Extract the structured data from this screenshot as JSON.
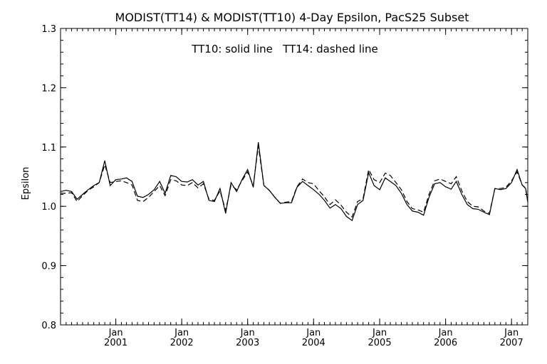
{
  "chart_data": {
    "type": "line",
    "title": "MODIST(TT14) & MODIST(TT10) 4-Day Epsilon, PacS25 Subset",
    "annotation": "TT10: solid line   TT14: dashed line",
    "ylabel": "Epsilon",
    "xlabel": "",
    "ylim": [
      0.8,
      1.3
    ],
    "yticks": [
      "0.8",
      "0.9",
      "1.0",
      "1.1",
      "1.2",
      "1.3"
    ],
    "xlim": [
      "2000-03-01",
      "2007-04-01"
    ],
    "xticks": [
      {
        "date": "2001-01-01",
        "month": "Jan",
        "year": "2001"
      },
      {
        "date": "2002-01-01",
        "month": "Jan",
        "year": "2002"
      },
      {
        "date": "2003-01-01",
        "month": "Jan",
        "year": "2003"
      },
      {
        "date": "2004-01-01",
        "month": "Jan",
        "year": "2004"
      },
      {
        "date": "2005-01-01",
        "month": "Jan",
        "year": "2005"
      },
      {
        "date": "2006-01-01",
        "month": "Jan",
        "year": "2006"
      },
      {
        "date": "2007-01-01",
        "month": "Jan",
        "year": "2007"
      }
    ],
    "grid": false,
    "series": [
      {
        "name": "TT10",
        "style": "solid",
        "points": [
          [
            "2000-03-01",
            1.025
          ],
          [
            "2000-04-01",
            1.027
          ],
          [
            "2000-05-01",
            1.025
          ],
          [
            "2000-06-01",
            1.012
          ],
          [
            "2000-07-01",
            1.02
          ],
          [
            "2000-08-01",
            1.028
          ],
          [
            "2000-09-01",
            1.035
          ],
          [
            "2000-10-01",
            1.04
          ],
          [
            "2000-11-01",
            1.077
          ],
          [
            "2000-12-01",
            1.035
          ],
          [
            "2001-01-01",
            1.045
          ],
          [
            "2001-02-01",
            1.046
          ],
          [
            "2001-03-01",
            1.048
          ],
          [
            "2001-04-01",
            1.042
          ],
          [
            "2001-05-01",
            1.017
          ],
          [
            "2001-06-01",
            1.015
          ],
          [
            "2001-07-01",
            1.02
          ],
          [
            "2001-08-01",
            1.028
          ],
          [
            "2001-09-01",
            1.042
          ],
          [
            "2001-10-01",
            1.022
          ],
          [
            "2001-11-01",
            1.052
          ],
          [
            "2001-12-01",
            1.05
          ],
          [
            "2002-01-01",
            1.042
          ],
          [
            "2002-02-01",
            1.041
          ],
          [
            "2002-03-01",
            1.045
          ],
          [
            "2002-04-01",
            1.036
          ],
          [
            "2002-05-01",
            1.042
          ],
          [
            "2002-06-01",
            1.01
          ],
          [
            "2002-07-01",
            1.008
          ],
          [
            "2002-08-01",
            1.03
          ],
          [
            "2002-09-01",
            0.988
          ],
          [
            "2002-10-01",
            1.04
          ],
          [
            "2002-11-01",
            1.025
          ],
          [
            "2002-12-01",
            1.045
          ],
          [
            "2003-01-01",
            1.062
          ],
          [
            "2003-02-01",
            1.032
          ],
          [
            "2003-03-01",
            1.108
          ],
          [
            "2003-04-01",
            1.035
          ],
          [
            "2003-05-01",
            1.027
          ],
          [
            "2003-06-01",
            1.015
          ],
          [
            "2003-07-01",
            1.005
          ],
          [
            "2003-08-01",
            1.006
          ],
          [
            "2003-09-01",
            1.006
          ],
          [
            "2003-10-01",
            1.032
          ],
          [
            "2003-11-01",
            1.042
          ],
          [
            "2003-12-01",
            1.035
          ],
          [
            "2004-01-01",
            1.028
          ],
          [
            "2004-02-01",
            1.02
          ],
          [
            "2004-03-01",
            1.01
          ],
          [
            "2004-04-01",
            0.997
          ],
          [
            "2004-05-01",
            1.003
          ],
          [
            "2004-06-01",
            0.996
          ],
          [
            "2004-07-01",
            0.983
          ],
          [
            "2004-08-01",
            0.976
          ],
          [
            "2004-09-01",
            1.003
          ],
          [
            "2004-10-01",
            1.01
          ],
          [
            "2004-11-01",
            1.057
          ],
          [
            "2004-12-01",
            1.035
          ],
          [
            "2005-01-01",
            1.028
          ],
          [
            "2005-02-01",
            1.048
          ],
          [
            "2005-03-01",
            1.042
          ],
          [
            "2005-04-01",
            1.035
          ],
          [
            "2005-05-01",
            1.022
          ],
          [
            "2005-06-01",
            1.003
          ],
          [
            "2005-07-01",
            0.992
          ],
          [
            "2005-08-01",
            0.99
          ],
          [
            "2005-09-01",
            0.985
          ],
          [
            "2005-10-01",
            1.015
          ],
          [
            "2005-11-01",
            1.038
          ],
          [
            "2005-12-01",
            1.04
          ],
          [
            "2006-01-01",
            1.033
          ],
          [
            "2006-02-01",
            1.029
          ],
          [
            "2006-03-01",
            1.042
          ],
          [
            "2006-04-01",
            1.02
          ],
          [
            "2006-05-01",
            1.003
          ],
          [
            "2006-06-01",
            0.996
          ],
          [
            "2006-07-01",
            0.995
          ],
          [
            "2006-08-01",
            0.99
          ],
          [
            "2006-09-01",
            0.986
          ],
          [
            "2006-10-01",
            1.03
          ],
          [
            "2006-11-01",
            1.028
          ],
          [
            "2006-12-01",
            1.03
          ],
          [
            "2007-01-01",
            1.04
          ],
          [
            "2007-02-01",
            1.062
          ],
          [
            "2007-03-01",
            1.036
          ],
          [
            "2007-03-20",
            1.03
          ],
          [
            "2007-04-01",
            1.007
          ]
        ]
      },
      {
        "name": "TT14",
        "style": "dashed",
        "points": [
          [
            "2000-03-01",
            1.022
          ],
          [
            "2000-04-01",
            1.022
          ],
          [
            "2000-05-01",
            1.023
          ],
          [
            "2000-06-01",
            1.008
          ],
          [
            "2000-07-01",
            1.018
          ],
          [
            "2000-08-01",
            1.027
          ],
          [
            "2000-09-01",
            1.033
          ],
          [
            "2000-10-01",
            1.04
          ],
          [
            "2000-11-01",
            1.07
          ],
          [
            "2000-12-01",
            1.04
          ],
          [
            "2001-01-01",
            1.042
          ],
          [
            "2001-02-01",
            1.043
          ],
          [
            "2001-03-01",
            1.04
          ],
          [
            "2001-04-01",
            1.036
          ],
          [
            "2001-05-01",
            1.01
          ],
          [
            "2001-06-01",
            1.008
          ],
          [
            "2001-07-01",
            1.015
          ],
          [
            "2001-08-01",
            1.025
          ],
          [
            "2001-09-01",
            1.035
          ],
          [
            "2001-10-01",
            1.018
          ],
          [
            "2001-11-01",
            1.045
          ],
          [
            "2001-12-01",
            1.043
          ],
          [
            "2002-01-01",
            1.036
          ],
          [
            "2002-02-01",
            1.035
          ],
          [
            "2002-03-01",
            1.04
          ],
          [
            "2002-04-01",
            1.031
          ],
          [
            "2002-05-01",
            1.038
          ],
          [
            "2002-06-01",
            1.012
          ],
          [
            "2002-07-01",
            1.01
          ],
          [
            "2002-08-01",
            1.026
          ],
          [
            "2002-09-01",
            0.993
          ],
          [
            "2002-10-01",
            1.036
          ],
          [
            "2002-11-01",
            1.028
          ],
          [
            "2002-12-01",
            1.043
          ],
          [
            "2003-01-01",
            1.058
          ],
          [
            "2003-02-01",
            1.035
          ],
          [
            "2003-03-01",
            1.102
          ],
          [
            "2003-04-01",
            1.035
          ],
          [
            "2003-05-01",
            1.027
          ],
          [
            "2003-06-01",
            1.015
          ],
          [
            "2003-07-01",
            1.005
          ],
          [
            "2003-08-01",
            1.007
          ],
          [
            "2003-09-01",
            1.008
          ],
          [
            "2003-10-01",
            1.033
          ],
          [
            "2003-11-01",
            1.046
          ],
          [
            "2003-12-01",
            1.04
          ],
          [
            "2004-01-01",
            1.038
          ],
          [
            "2004-02-01",
            1.026
          ],
          [
            "2004-03-01",
            1.016
          ],
          [
            "2004-04-01",
            1.003
          ],
          [
            "2004-05-01",
            1.011
          ],
          [
            "2004-06-01",
            1.002
          ],
          [
            "2004-07-01",
            0.99
          ],
          [
            "2004-08-01",
            0.982
          ],
          [
            "2004-09-01",
            1.008
          ],
          [
            "2004-10-01",
            1.013
          ],
          [
            "2004-11-01",
            1.062
          ],
          [
            "2004-12-01",
            1.045
          ],
          [
            "2005-01-01",
            1.04
          ],
          [
            "2005-02-01",
            1.056
          ],
          [
            "2005-03-01",
            1.052
          ],
          [
            "2005-04-01",
            1.04
          ],
          [
            "2005-05-01",
            1.028
          ],
          [
            "2005-06-01",
            1.008
          ],
          [
            "2005-07-01",
            0.996
          ],
          [
            "2005-08-01",
            0.994
          ],
          [
            "2005-09-01",
            0.99
          ],
          [
            "2005-10-01",
            1.02
          ],
          [
            "2005-11-01",
            1.043
          ],
          [
            "2005-12-01",
            1.046
          ],
          [
            "2006-01-01",
            1.042
          ],
          [
            "2006-02-01",
            1.038
          ],
          [
            "2006-03-01",
            1.05
          ],
          [
            "2006-04-01",
            1.026
          ],
          [
            "2006-05-01",
            1.008
          ],
          [
            "2006-06-01",
            1.0
          ],
          [
            "2006-07-01",
            0.999
          ],
          [
            "2006-08-01",
            0.992
          ],
          [
            "2006-09-01",
            0.988
          ],
          [
            "2006-10-01",
            1.03
          ],
          [
            "2006-11-01",
            1.03
          ],
          [
            "2006-12-01",
            1.032
          ],
          [
            "2007-01-01",
            1.043
          ],
          [
            "2007-02-01",
            1.058
          ],
          [
            "2007-03-01",
            1.036
          ],
          [
            "2007-03-20",
            1.031
          ],
          [
            "2007-04-01",
            1.008
          ]
        ]
      }
    ]
  }
}
